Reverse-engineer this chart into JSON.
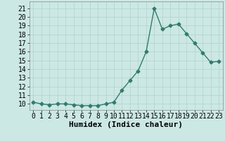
{
  "x": [
    0,
    1,
    2,
    3,
    4,
    5,
    6,
    7,
    8,
    9,
    10,
    11,
    12,
    13,
    14,
    15,
    16,
    17,
    18,
    19,
    20,
    21,
    22,
    23
  ],
  "y": [
    10.2,
    10.0,
    9.9,
    10.0,
    10.0,
    9.9,
    9.8,
    9.8,
    9.8,
    10.0,
    10.2,
    11.6,
    12.7,
    13.8,
    16.0,
    21.0,
    18.6,
    19.0,
    19.2,
    18.1,
    17.0,
    15.9,
    14.8,
    14.9
  ],
  "xlabel": "Humidex (Indice chaleur)",
  "xlim": [
    -0.5,
    23.5
  ],
  "ylim": [
    9.3,
    21.8
  ],
  "yticks": [
    10,
    11,
    12,
    13,
    14,
    15,
    16,
    17,
    18,
    19,
    20,
    21
  ],
  "xticks": [
    0,
    1,
    2,
    3,
    4,
    5,
    6,
    7,
    8,
    9,
    10,
    11,
    12,
    13,
    14,
    15,
    16,
    17,
    18,
    19,
    20,
    21,
    22,
    23
  ],
  "line_color": "#2e7d6e",
  "marker": "D",
  "marker_size": 2.5,
  "bg_color": "#cce8e4",
  "grid_color": "#b8d4d0",
  "label_fontsize": 8,
  "tick_fontsize": 7
}
